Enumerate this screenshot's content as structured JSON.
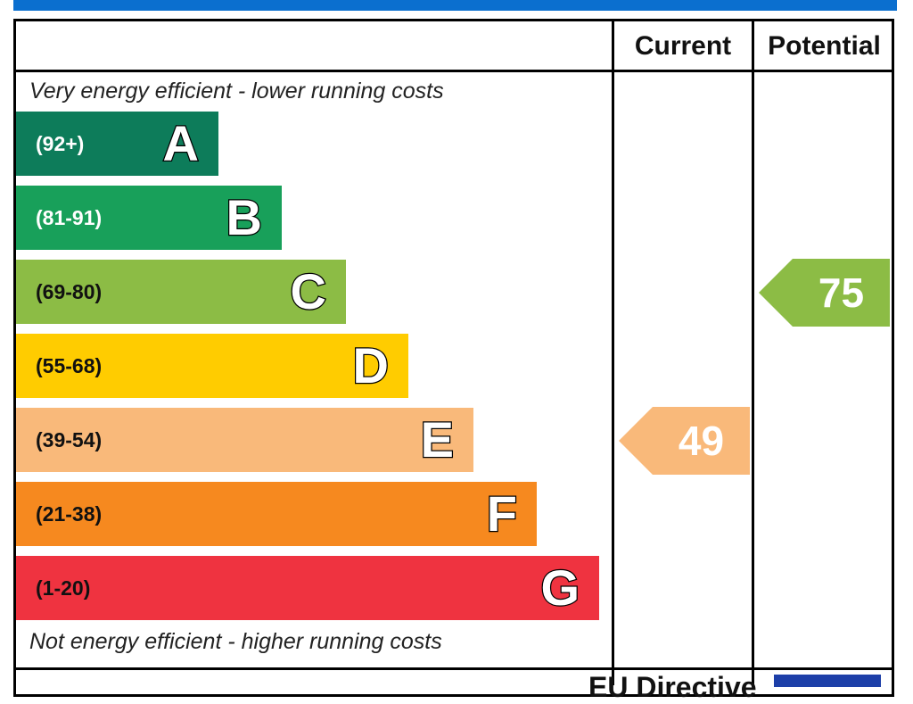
{
  "header": {
    "current_label": "Current",
    "potential_label": "Potential"
  },
  "captions": {
    "top": "Very energy efficient - lower running costs",
    "bottom": "Not energy efficient - higher running costs"
  },
  "footer": {
    "text": "EU Directive"
  },
  "colors": {
    "A": "#0d7c5a",
    "B": "#18a05a",
    "C": "#8cbc45",
    "D": "#ffcc00",
    "E": "#f9b97a",
    "F": "#f6891f",
    "G": "#ef3340"
  },
  "chart_data": {
    "type": "bar",
    "bands": [
      {
        "letter": "A",
        "range": "(92+)",
        "min": 92,
        "max": 100,
        "color": "#0d7c5a",
        "text_color": "#ffffff"
      },
      {
        "letter": "B",
        "range": "(81-91)",
        "min": 81,
        "max": 91,
        "color": "#18a05a",
        "text_color": "#ffffff"
      },
      {
        "letter": "C",
        "range": "(69-80)",
        "min": 69,
        "max": 80,
        "color": "#8cbc45",
        "text_color": "#111111"
      },
      {
        "letter": "D",
        "range": "(55-68)",
        "min": 55,
        "max": 68,
        "color": "#ffcc00",
        "text_color": "#111111"
      },
      {
        "letter": "E",
        "range": "(39-54)",
        "min": 39,
        "max": 54,
        "color": "#f9b97a",
        "text_color": "#111111"
      },
      {
        "letter": "F",
        "range": "(21-38)",
        "min": 21,
        "max": 38,
        "color": "#f6891f",
        "text_color": "#111111"
      },
      {
        "letter": "G",
        "range": "(1-20)",
        "min": 1,
        "max": 20,
        "color": "#ef3340",
        "text_color": "#111111"
      }
    ],
    "current": {
      "value": 49,
      "band": "E",
      "color": "#f9b97a"
    },
    "potential": {
      "value": 75,
      "band": "C",
      "color": "#8cbc45"
    }
  }
}
